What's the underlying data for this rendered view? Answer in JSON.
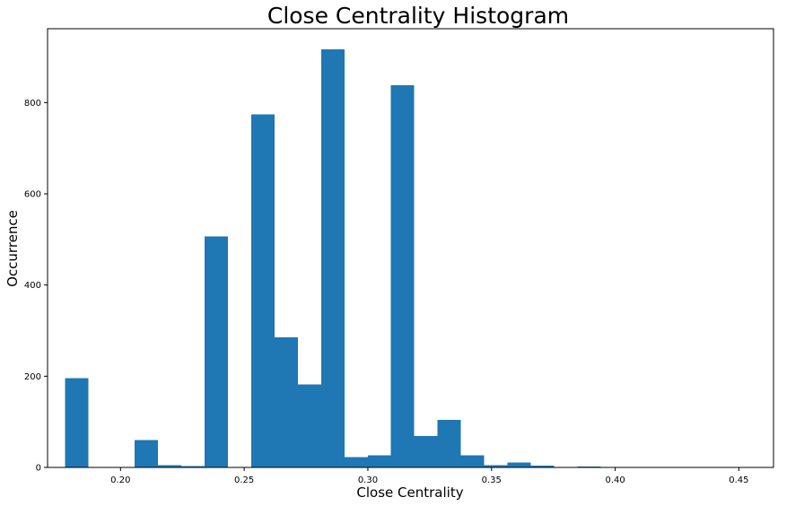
{
  "chart_data": {
    "type": "bar",
    "title": "Close Centrality Histogram",
    "xlabel": "Close Centrality",
    "ylabel": "Occurrence",
    "xlim": [
      0.1705,
      0.464
    ],
    "ylim": [
      0,
      962
    ],
    "x_ticks": [
      0.2,
      0.25,
      0.3,
      0.35,
      0.4,
      0.45
    ],
    "x_tick_labels": [
      "0.20",
      "0.25",
      "0.30",
      "0.35",
      "0.40",
      "0.45"
    ],
    "y_ticks": [
      0,
      200,
      400,
      600,
      800
    ],
    "y_tick_labels": [
      "0",
      "200",
      "400",
      "600",
      "800"
    ],
    "bin_start": 0.1775,
    "bin_width": 0.009418,
    "values": [
      196,
      0,
      0,
      60,
      5,
      3,
      507,
      0,
      774,
      285,
      182,
      917,
      23,
      27,
      838,
      69,
      104,
      27,
      5,
      11,
      4,
      0,
      2,
      1,
      0,
      0,
      0,
      0,
      0,
      1
    ],
    "bar_color": "#1f77b4",
    "grid": false,
    "legend": "none"
  }
}
